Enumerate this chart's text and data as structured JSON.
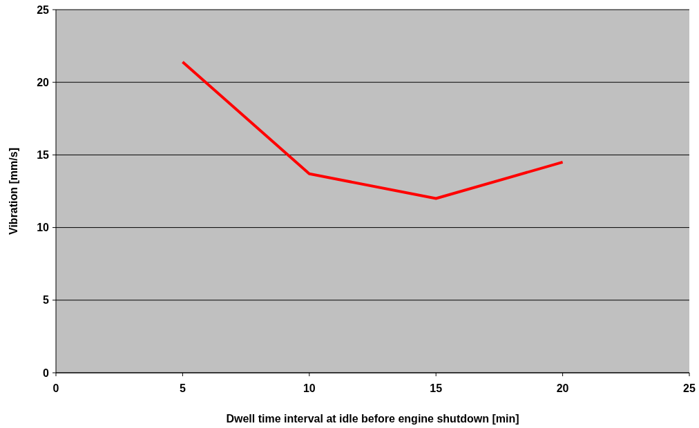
{
  "chart_data": {
    "type": "line",
    "xlabel": "Dwell time interval at idle before engine shutdown [min]",
    "ylabel": "Vibration [mm/s]",
    "x": [
      5,
      10,
      15,
      20
    ],
    "series": [
      {
        "color": "#ff0000",
        "values": [
          21.4,
          13.7,
          12.0,
          14.5
        ]
      }
    ],
    "xlim": [
      0,
      25
    ],
    "xticks": [
      0,
      5,
      10,
      15,
      20,
      25
    ],
    "ylim": [
      0,
      25
    ],
    "yticks": [
      0,
      5,
      10,
      15,
      20,
      25
    ],
    "grid": "y",
    "marker": "none",
    "line_style": "solid"
  }
}
